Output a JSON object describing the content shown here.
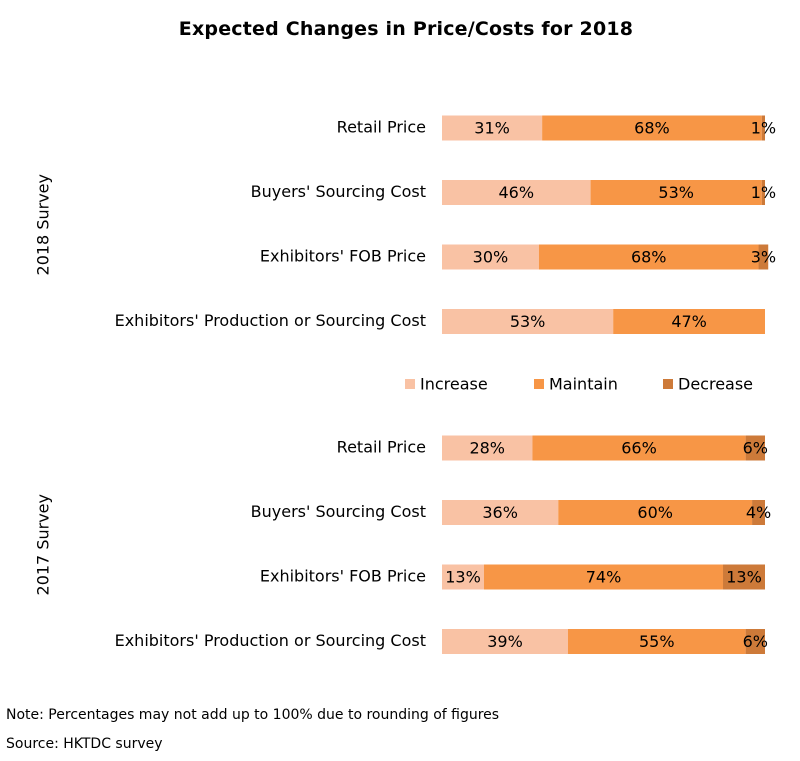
{
  "chart_data": {
    "type": "bar",
    "orientation": "horizontal",
    "stacked": true,
    "percent": true,
    "title": "Expected Changes in Price/Costs for 2018",
    "legend": [
      "Increase",
      "Maintain",
      "Decrease"
    ],
    "colors": {
      "Increase": "#f9c2a4",
      "Maintain": "#f79646",
      "Decrease": "#cd7a39"
    },
    "groups": [
      {
        "label": "2018 Survey",
        "categories": [
          "Retail Price",
          "Buyers' Sourcing Cost",
          "Exhibitors' FOB Price",
          "Exhibitors' Production or Sourcing Cost"
        ],
        "series": [
          {
            "name": "Increase",
            "values": [
              31,
              46,
              30,
              53
            ]
          },
          {
            "name": "Maintain",
            "values": [
              68,
              53,
              68,
              47
            ]
          },
          {
            "name": "Decrease",
            "values": [
              1,
              1,
              3,
              0
            ]
          }
        ]
      },
      {
        "label": "2017 Survey",
        "categories": [
          "Retail Price",
          "Buyers' Sourcing Cost",
          "Exhibitors' FOB Price",
          "Exhibitors' Production or Sourcing Cost"
        ],
        "series": [
          {
            "name": "Increase",
            "values": [
              28,
              36,
              13,
              39
            ]
          },
          {
            "name": "Maintain",
            "values": [
              66,
              60,
              74,
              55
            ]
          },
          {
            "name": "Decrease",
            "values": [
              6,
              4,
              13,
              6
            ]
          }
        ]
      }
    ],
    "xlim": [
      0,
      100
    ]
  },
  "notes": {
    "note": "Note: Percentages may not add up to 100% due to rounding of figures",
    "source": "Source: HKTDC survey"
  }
}
